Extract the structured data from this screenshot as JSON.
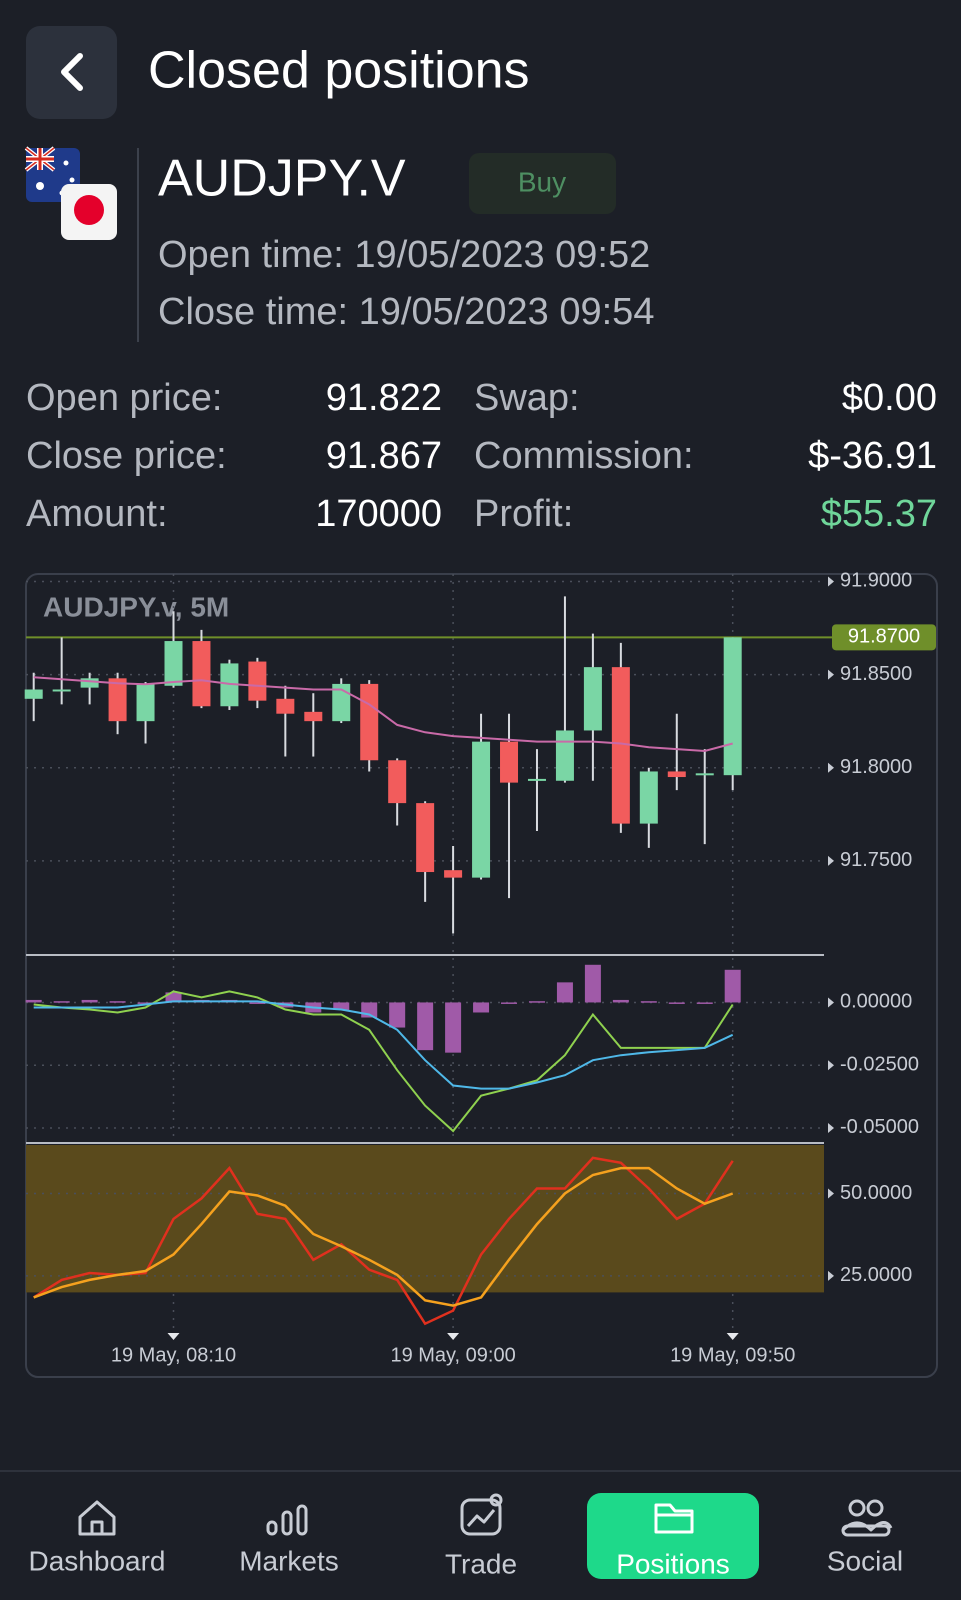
{
  "header": {
    "title": "Closed positions"
  },
  "position": {
    "symbol": "AUDJPY.V",
    "side": "Buy",
    "open_time": "Open time: 19/05/2023 09:52",
    "close_time": "Close time: 19/05/2023 09:54"
  },
  "details": {
    "rows": [
      [
        "Open price:",
        "91.822",
        "Swap:",
        "$0.00"
      ],
      [
        "Close price:",
        "91.867",
        "Commission:",
        "$-36.91"
      ],
      [
        "Amount:",
        "170000",
        "Profit:",
        "$55.37"
      ]
    ],
    "profit_color": "#6fd69a"
  },
  "chart_data": [
    {
      "type": "candlestick",
      "title": "AUDJPY.v, 5M",
      "categories": [
        null,
        null,
        null,
        null,
        null,
        "19 May, 08:10",
        null,
        null,
        null,
        null,
        null,
        null,
        null,
        null,
        null,
        "19 May, 09:00",
        null,
        null,
        null,
        null,
        null,
        null,
        null,
        null,
        null,
        "19 May, 09:50"
      ],
      "open": [
        91.837,
        91.841,
        91.843,
        91.848,
        91.825,
        91.844,
        91.868,
        91.833,
        91.857,
        91.837,
        91.83,
        91.825,
        91.845,
        91.804,
        91.781,
        91.745,
        91.741,
        91.814,
        91.793,
        91.793,
        91.82,
        91.854,
        91.77,
        91.798,
        91.796,
        91.796
      ],
      "high": [
        91.851,
        91.87,
        91.851,
        91.851,
        91.846,
        91.884,
        91.874,
        91.858,
        91.859,
        91.844,
        91.84,
        91.848,
        91.847,
        91.805,
        91.782,
        91.758,
        91.829,
        91.829,
        91.81,
        91.892,
        91.872,
        91.867,
        91.8,
        91.829,
        91.81,
        91.87
      ],
      "low": [
        91.825,
        91.834,
        91.834,
        91.818,
        91.813,
        91.843,
        91.832,
        91.831,
        91.832,
        91.806,
        91.806,
        91.824,
        91.798,
        91.769,
        91.728,
        91.711,
        91.74,
        91.73,
        91.766,
        91.792,
        91.793,
        91.765,
        91.757,
        91.788,
        91.759,
        91.788
      ],
      "close": [
        91.842,
        91.842,
        91.848,
        91.825,
        91.845,
        91.868,
        91.833,
        91.856,
        91.836,
        91.829,
        91.825,
        91.845,
        91.804,
        91.781,
        91.744,
        91.741,
        91.814,
        91.792,
        91.794,
        91.82,
        91.854,
        91.77,
        91.798,
        91.795,
        91.797,
        91.87
      ],
      "up_color": "#7ad6a5",
      "down_color": "#f25c5c",
      "overlays": [
        {
          "color": "#c96aa8",
          "values": [
            91.8486,
            91.8475,
            91.8464,
            91.8454,
            91.8448,
            91.846,
            91.847,
            91.845,
            91.844,
            91.843,
            91.842,
            91.842,
            91.834,
            91.823,
            91.819,
            91.817,
            91.816,
            91.815,
            91.814,
            91.814,
            91.814,
            91.813,
            91.811,
            91.81,
            91.809,
            91.813
          ]
        }
      ],
      "price_line": {
        "value": 91.87,
        "label": "91.8700",
        "color": "#6f8f2a"
      },
      "ylim": [
        91.7,
        91.904
      ],
      "yticks": [
        {
          "value": 91.9,
          "label": "91.9000"
        },
        {
          "value": 91.85,
          "label": "91.8500"
        },
        {
          "value": 91.8,
          "label": "91.8000"
        },
        {
          "value": 91.75,
          "label": "91.7500"
        }
      ],
      "grid": true
    },
    {
      "type": "macd",
      "histogram": [
        0.001,
        0.0005,
        0.001,
        0.0005,
        0,
        0.004,
        0.001,
        0.001,
        0,
        -0.002,
        -0.004,
        -0.003,
        -0.006,
        -0.01,
        -0.019,
        -0.02,
        -0.004,
        0,
        0.0005,
        0.008,
        0.015,
        0.001,
        0.0005,
        0,
        0,
        0.013
      ],
      "histogram_color": "#a05aa8",
      "lines": [
        {
          "color": "#8fd14f",
          "values": [
            -0.0008,
            -0.002,
            -0.0028,
            -0.004,
            -0.002,
            0.0044,
            0.002,
            0.0044,
            0.002,
            -0.0028,
            -0.0048,
            -0.0048,
            -0.0109,
            -0.027,
            -0.0411,
            -0.0512,
            -0.0371,
            -0.0343,
            -0.031,
            -0.021,
            -0.0048,
            -0.0181,
            -0.0181,
            -0.0181,
            -0.0181,
            -0.0008
          ]
        },
        {
          "color": "#4fb8e8",
          "values": [
            -0.002,
            -0.002,
            -0.002,
            -0.002,
            -0.0008,
            0.0004,
            0.0004,
            0.0004,
            0.0004,
            -0.0008,
            -0.002,
            -0.0028,
            -0.0048,
            -0.0109,
            -0.023,
            -0.0331,
            -0.0343,
            -0.0343,
            -0.0319,
            -0.029,
            -0.023,
            -0.021,
            -0.0198,
            -0.019,
            -0.0181,
            -0.0129
          ]
        }
      ],
      "ylim": [
        -0.0532,
        0.0185
      ],
      "yticks": [
        {
          "value": 0,
          "label": "0.00000"
        },
        {
          "value": -0.025,
          "label": "-0.02500"
        },
        {
          "value": -0.05,
          "label": "-0.05000"
        }
      ],
      "grid": true
    },
    {
      "type": "stochastic",
      "band": [
        20,
        80
      ],
      "band_color": "#5a4a1c",
      "lines": [
        {
          "color": "#e0301e",
          "values": [
            18.5,
            23.8,
            25.9,
            25.3,
            25.9,
            42.3,
            48.5,
            57.7,
            43.8,
            42.3,
            29.9,
            34.6,
            26.9,
            23.8,
            10.5,
            14.5,
            31.5,
            42.3,
            51.5,
            51.5,
            60.8,
            59.3,
            51.5,
            42.3,
            46.9,
            59.9
          ]
        },
        {
          "color": "#f5a11e",
          "values": [
            18.5,
            21.6,
            23.8,
            25.3,
            26.5,
            31.5,
            40.7,
            50.6,
            49.4,
            46.3,
            37.7,
            34,
            29.9,
            25.3,
            17.6,
            16,
            18.5,
            29.9,
            40.7,
            50,
            55.6,
            57.7,
            57.7,
            51.5,
            46.9,
            50
          ]
        }
      ],
      "ylim": [
        8.3,
        64.7
      ],
      "yticks": [
        {
          "value": 50,
          "label": "50.0000"
        },
        {
          "value": 25,
          "label": "25.0000"
        }
      ],
      "grid": true
    }
  ],
  "nav": {
    "items": [
      "Dashboard",
      "Markets",
      "Trade",
      "Positions",
      "Social"
    ],
    "active": 3,
    "active_color": "#1ed98a"
  }
}
